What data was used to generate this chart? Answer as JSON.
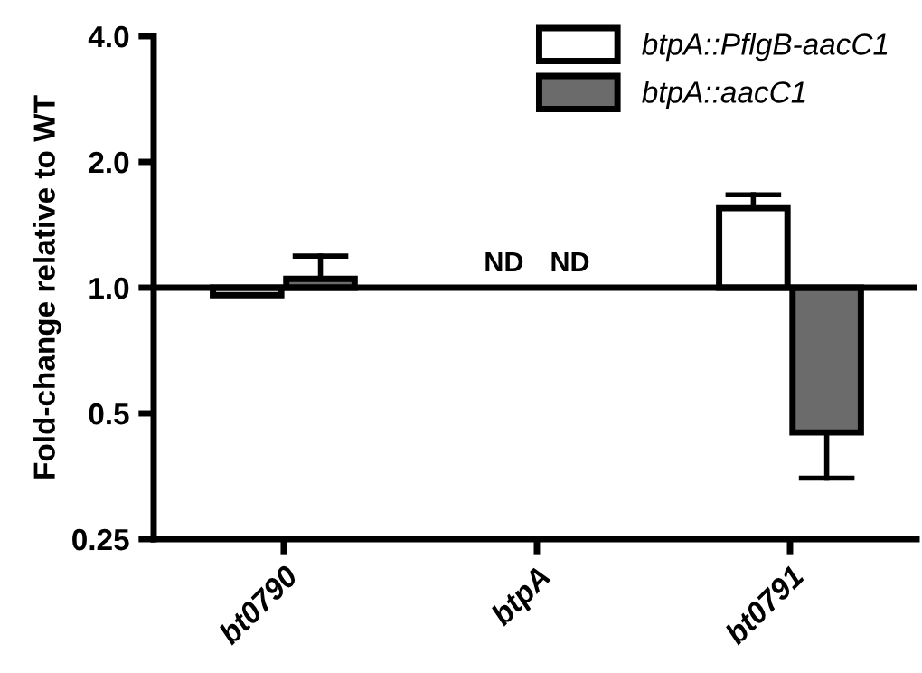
{
  "chart_data": {
    "type": "bar",
    "ylabel": "Fold-change relative to WT",
    "categories": [
      "bt0790",
      "btpA",
      "bt0791"
    ],
    "series": [
      {
        "name": "btpA::PflgB-aacC1",
        "color": "#ffffff",
        "values": [
          -0.04,
          null,
          0.55
        ],
        "base": [
          1,
          null,
          1
        ],
        "errors": [
          null,
          null,
          [
            1.55,
            1.67
          ]
        ]
      },
      {
        "name": "btpA::aacC1",
        "color": "#6b6b6b",
        "values": [
          0.05,
          null,
          -0.55
        ],
        "base": [
          1,
          null,
          1
        ],
        "errors": [
          [
            1.05,
            1.19
          ],
          null,
          [
            0.35,
            0.45
          ]
        ]
      }
    ],
    "annotations": [
      "ND",
      "ND"
    ],
    "log": "y",
    "ylim": [
      0.25,
      4.0
    ],
    "yticks": [
      0.25,
      {
        "value": 0.5,
        "label": "0.5"
      },
      {
        "value": 1.0,
        "label": "1.0"
      },
      {
        "value": 2.0,
        "label": "2.0"
      },
      {
        "value": 4.0,
        "label": "4.0"
      }
    ],
    "ref_lines": [
      {
        "axis": "y",
        "value": 1.0,
        "label": null,
        "color": "#000000"
      }
    ],
    "legend": "top right",
    "grid": false
  }
}
